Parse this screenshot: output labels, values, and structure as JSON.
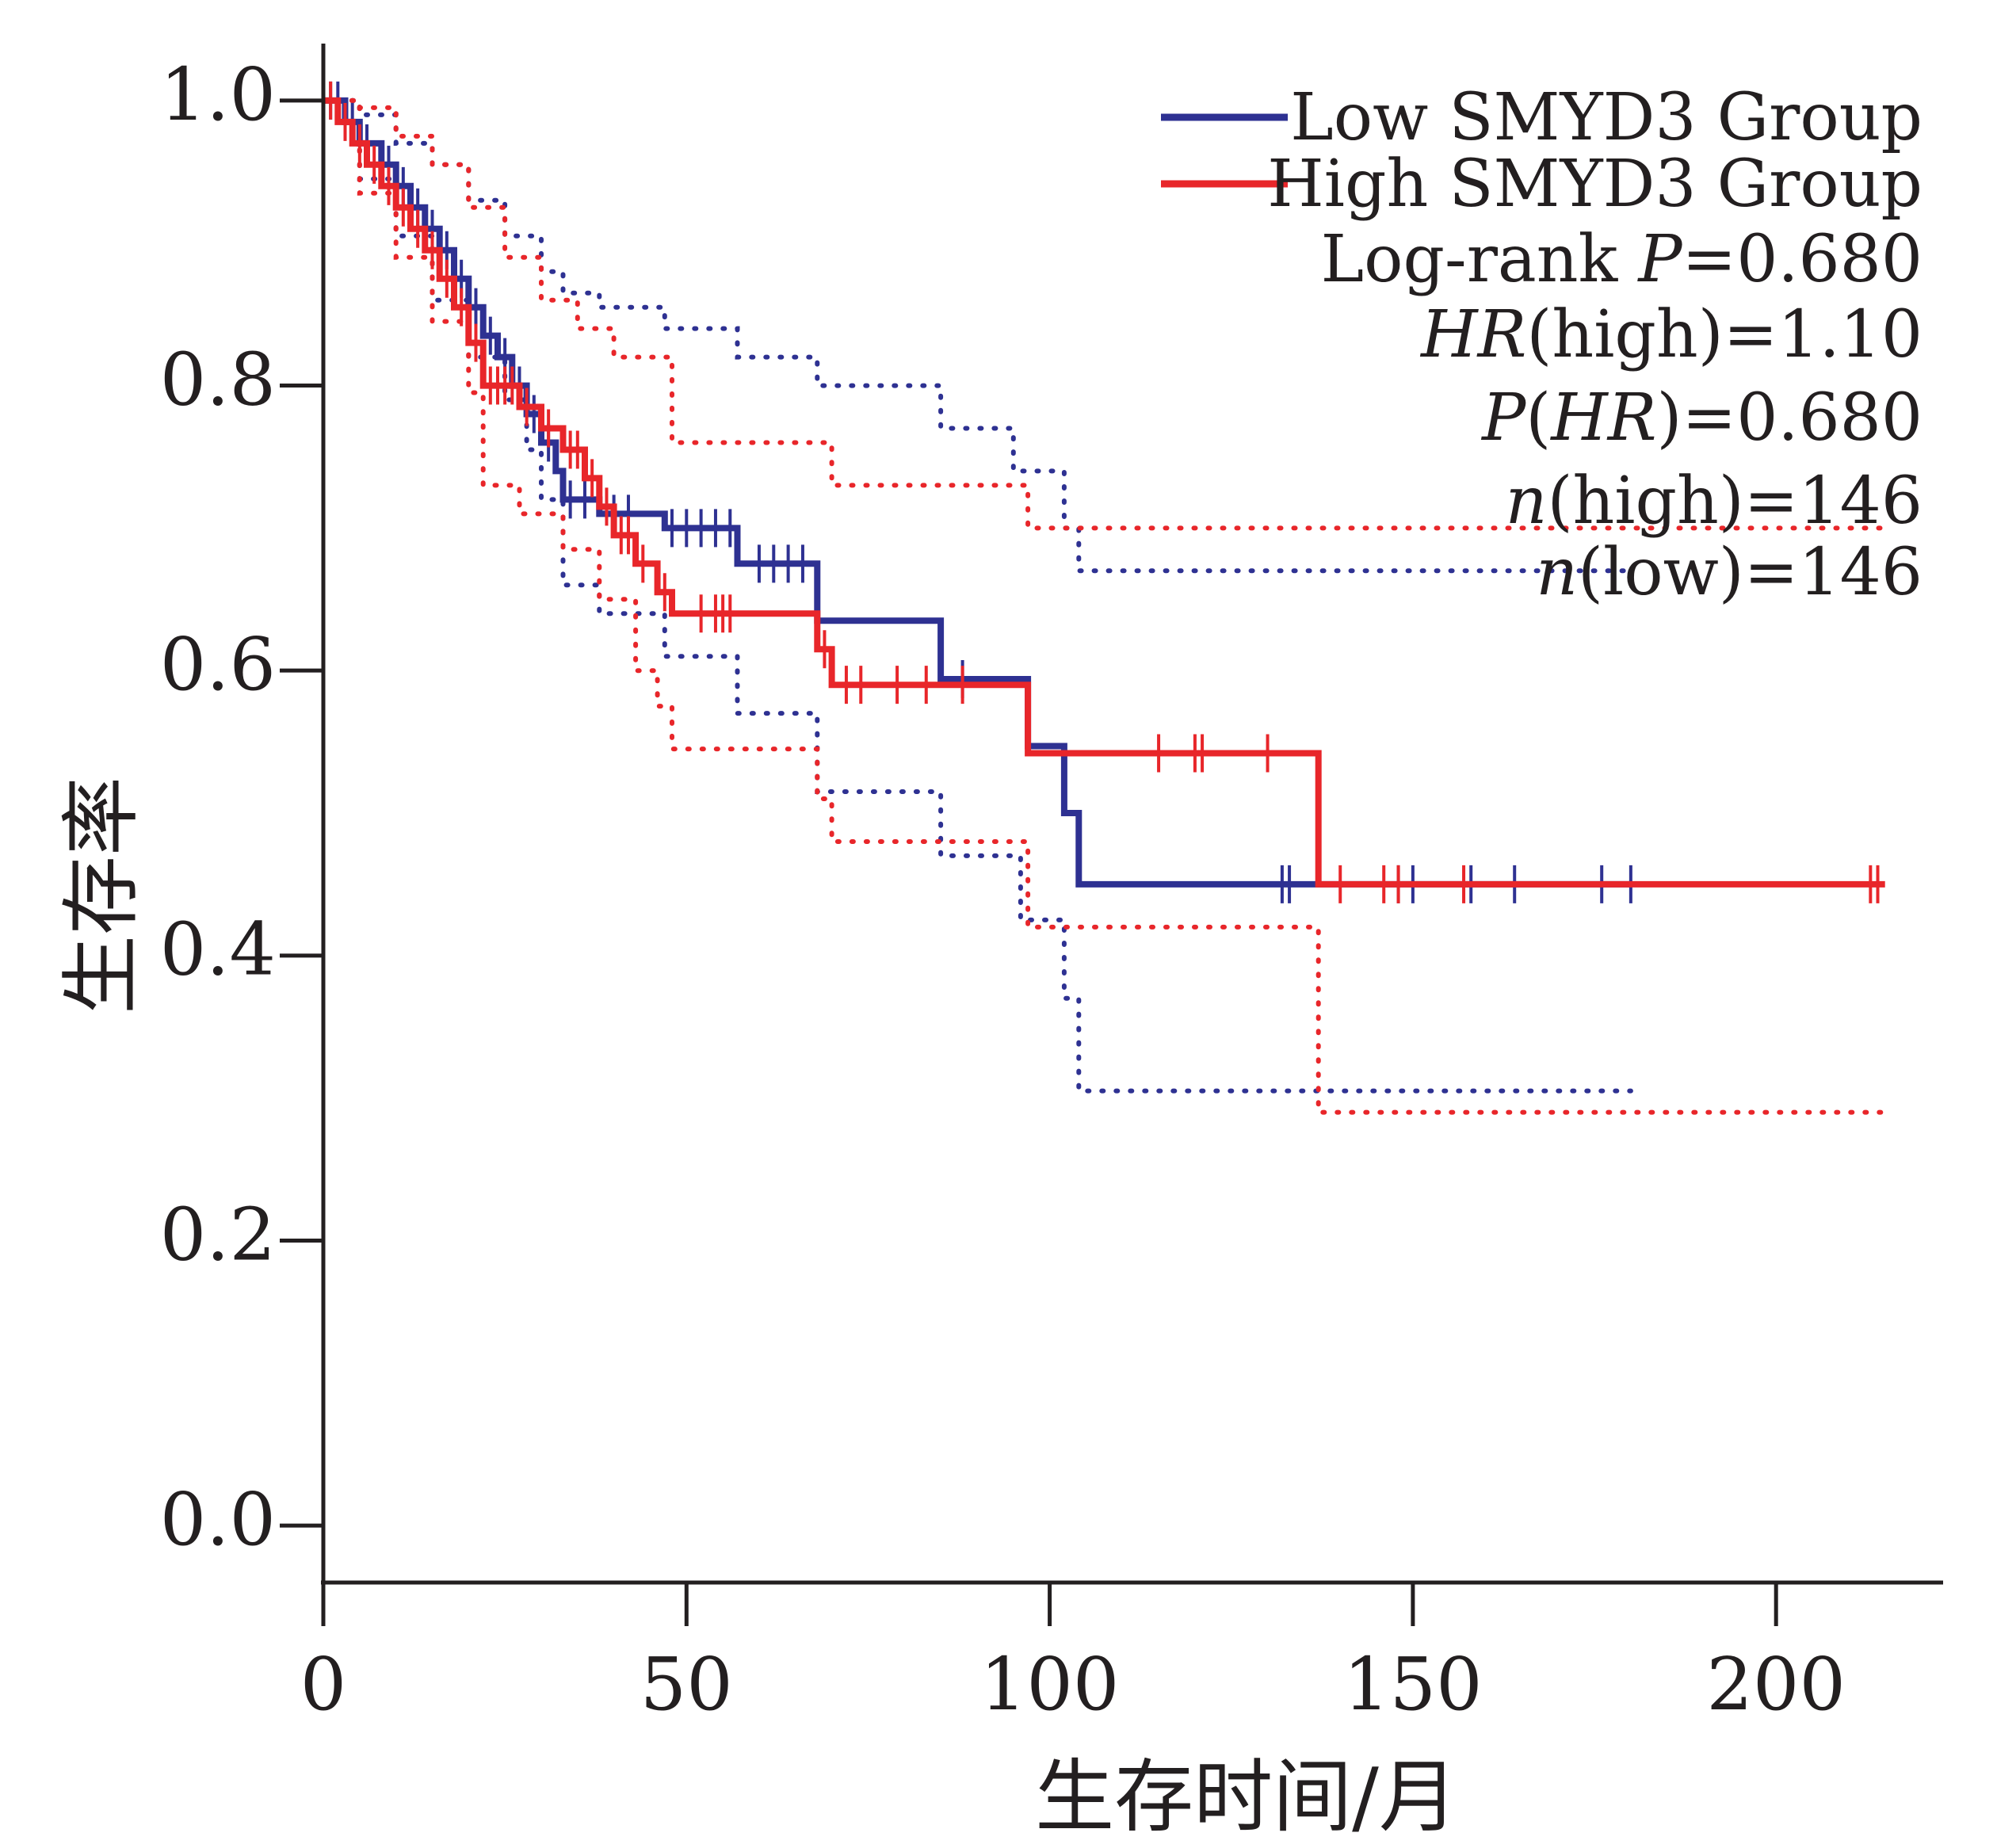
{
  "chart_data": {
    "type": "line",
    "subtype": "kaplan-meier",
    "title": "",
    "xlabel": "生存时间/月",
    "ylabel": "生存率",
    "xlim": [
      0,
      223
    ],
    "ylim": [
      -0.04,
      1.04
    ],
    "xticks": [
      0,
      50,
      100,
      150,
      200
    ],
    "xtick_labels": [
      "0",
      "50",
      "100",
      "150",
      "200"
    ],
    "yticks": [
      0.0,
      0.2,
      0.4,
      0.6,
      0.8,
      1.0
    ],
    "ytick_labels": [
      "0.0",
      "0.2",
      "0.4",
      "0.6",
      "0.8",
      "1.0"
    ],
    "grid": false,
    "legend_position": "top-right",
    "stats": [
      {
        "parts": [
          {
            "t": "Log-rank ",
            "i": false
          },
          {
            "t": "P",
            "i": true
          },
          {
            "t": "=0.680",
            "i": false
          }
        ]
      },
      {
        "parts": [
          {
            "t": "HR",
            "i": true
          },
          {
            "t": "(high)=1.10",
            "i": false
          }
        ]
      },
      {
        "parts": [
          {
            "t": "P",
            "i": true
          },
          {
            "t": "(",
            "i": false
          },
          {
            "t": "HR",
            "i": true
          },
          {
            "t": ")=0.680",
            "i": false
          }
        ]
      },
      {
        "parts": [
          {
            "t": "n",
            "i": true
          },
          {
            "t": "(high)=146",
            "i": false
          }
        ]
      },
      {
        "parts": [
          {
            "t": "n",
            "i": true
          },
          {
            "t": "(low)=146",
            "i": false
          }
        ]
      }
    ],
    "series": [
      {
        "name": "Low SMYD3 Group",
        "color": "#2e3192",
        "steps": [
          [
            0,
            1.0
          ],
          [
            3,
            0.985
          ],
          [
            5,
            0.97
          ],
          [
            8,
            0.955
          ],
          [
            10,
            0.94
          ],
          [
            12,
            0.925
          ],
          [
            14,
            0.91
          ],
          [
            16,
            0.895
          ],
          [
            18,
            0.875
          ],
          [
            20,
            0.855
          ],
          [
            22,
            0.835
          ],
          [
            24,
            0.82
          ],
          [
            26,
            0.8
          ],
          [
            28,
            0.78
          ],
          [
            30,
            0.76
          ],
          [
            32,
            0.74
          ],
          [
            33,
            0.72
          ],
          [
            38,
            0.71
          ],
          [
            47,
            0.7
          ],
          [
            57,
            0.675
          ],
          [
            68,
            0.635
          ],
          [
            85,
            0.594
          ],
          [
            97,
            0.547
          ],
          [
            102,
            0.5
          ],
          [
            104,
            0.45
          ],
          [
            180,
            0.45
          ]
        ],
        "censors": [
          [
            1,
            1.0
          ],
          [
            2,
            1.0
          ],
          [
            4,
            0.985
          ],
          [
            6,
            0.97
          ],
          [
            9,
            0.955
          ],
          [
            11,
            0.94
          ],
          [
            13,
            0.925
          ],
          [
            15,
            0.91
          ],
          [
            17,
            0.895
          ],
          [
            19,
            0.875
          ],
          [
            21,
            0.855
          ],
          [
            23,
            0.835
          ],
          [
            25,
            0.82
          ],
          [
            27,
            0.8
          ],
          [
            29,
            0.78
          ],
          [
            31,
            0.76
          ],
          [
            34,
            0.72
          ],
          [
            36,
            0.72
          ],
          [
            40,
            0.71
          ],
          [
            42,
            0.71
          ],
          [
            48,
            0.7
          ],
          [
            50,
            0.7
          ],
          [
            52,
            0.7
          ],
          [
            54,
            0.7
          ],
          [
            56,
            0.7
          ],
          [
            60,
            0.675
          ],
          [
            62,
            0.675
          ],
          [
            64,
            0.675
          ],
          [
            66,
            0.675
          ],
          [
            88,
            0.594
          ],
          [
            132,
            0.45
          ],
          [
            133,
            0.45
          ],
          [
            148,
            0.45
          ],
          [
            150,
            0.45
          ],
          [
            158,
            0.45
          ],
          [
            164,
            0.45
          ],
          [
            176,
            0.45
          ],
          [
            180,
            0.45
          ]
        ],
        "ci_upper": [
          [
            0,
            1.0
          ],
          [
            5,
            0.99
          ],
          [
            10,
            0.97
          ],
          [
            15,
            0.955
          ],
          [
            20,
            0.93
          ],
          [
            25,
            0.905
          ],
          [
            30,
            0.88
          ],
          [
            33,
            0.865
          ],
          [
            38,
            0.855
          ],
          [
            47,
            0.84
          ],
          [
            57,
            0.82
          ],
          [
            68,
            0.8
          ],
          [
            85,
            0.77
          ],
          [
            95,
            0.74
          ],
          [
            102,
            0.7
          ],
          [
            104,
            0.67
          ],
          [
            180,
            0.67
          ]
        ],
        "ci_lower": [
          [
            0,
            1.0
          ],
          [
            5,
            0.945
          ],
          [
            10,
            0.905
          ],
          [
            15,
            0.86
          ],
          [
            20,
            0.82
          ],
          [
            25,
            0.79
          ],
          [
            28,
            0.755
          ],
          [
            30,
            0.72
          ],
          [
            33,
            0.66
          ],
          [
            38,
            0.64
          ],
          [
            47,
            0.61
          ],
          [
            57,
            0.57
          ],
          [
            68,
            0.515
          ],
          [
            85,
            0.47
          ],
          [
            96,
            0.425
          ],
          [
            102,
            0.37
          ],
          [
            104,
            0.305
          ],
          [
            180,
            0.305
          ]
        ]
      },
      {
        "name": "High SMYD3 Group",
        "color": "#e8262a",
        "steps": [
          [
            0,
            1.0
          ],
          [
            2,
            0.985
          ],
          [
            4,
            0.97
          ],
          [
            6,
            0.955
          ],
          [
            8,
            0.94
          ],
          [
            10,
            0.925
          ],
          [
            12,
            0.91
          ],
          [
            14,
            0.895
          ],
          [
            16,
            0.875
          ],
          [
            18,
            0.855
          ],
          [
            20,
            0.83
          ],
          [
            22,
            0.8
          ],
          [
            27,
            0.785
          ],
          [
            30,
            0.77
          ],
          [
            33,
            0.755
          ],
          [
            36,
            0.735
          ],
          [
            38,
            0.715
          ],
          [
            40,
            0.695
          ],
          [
            43,
            0.675
          ],
          [
            46,
            0.655
          ],
          [
            48,
            0.64
          ],
          [
            68,
            0.615
          ],
          [
            70,
            0.59
          ],
          [
            97,
            0.542
          ],
          [
            137,
            0.45
          ],
          [
            215,
            0.45
          ]
        ],
        "censors": [
          [
            1,
            1.0
          ],
          [
            3,
            0.985
          ],
          [
            5,
            0.97
          ],
          [
            7,
            0.955
          ],
          [
            9,
            0.94
          ],
          [
            11,
            0.925
          ],
          [
            13,
            0.91
          ],
          [
            15,
            0.895
          ],
          [
            17,
            0.875
          ],
          [
            19,
            0.855
          ],
          [
            21,
            0.83
          ],
          [
            23,
            0.8
          ],
          [
            24,
            0.8
          ],
          [
            25,
            0.8
          ],
          [
            26,
            0.8
          ],
          [
            28,
            0.785
          ],
          [
            31,
            0.77
          ],
          [
            34,
            0.755
          ],
          [
            35,
            0.755
          ],
          [
            37,
            0.735
          ],
          [
            39,
            0.715
          ],
          [
            41,
            0.695
          ],
          [
            42,
            0.695
          ],
          [
            44,
            0.675
          ],
          [
            47,
            0.655
          ],
          [
            52,
            0.64
          ],
          [
            54,
            0.64
          ],
          [
            55,
            0.64
          ],
          [
            56,
            0.64
          ],
          [
            69,
            0.615
          ],
          [
            72,
            0.59
          ],
          [
            74,
            0.59
          ],
          [
            79,
            0.59
          ],
          [
            83,
            0.59
          ],
          [
            88,
            0.59
          ],
          [
            115,
            0.542
          ],
          [
            120,
            0.542
          ],
          [
            121,
            0.542
          ],
          [
            130,
            0.542
          ],
          [
            140,
            0.45
          ],
          [
            146,
            0.45
          ],
          [
            148,
            0.45
          ],
          [
            157,
            0.45
          ],
          [
            213,
            0.45
          ],
          [
            214,
            0.45
          ]
        ],
        "ci_upper": [
          [
            0,
            1.0
          ],
          [
            5,
            0.995
          ],
          [
            10,
            0.975
          ],
          [
            15,
            0.955
          ],
          [
            20,
            0.925
          ],
          [
            25,
            0.89
          ],
          [
            30,
            0.86
          ],
          [
            35,
            0.84
          ],
          [
            40,
            0.82
          ],
          [
            48,
            0.76
          ],
          [
            68,
            0.76
          ],
          [
            70,
            0.73
          ],
          [
            97,
            0.7
          ],
          [
            137,
            0.7
          ],
          [
            215,
            0.7
          ]
        ],
        "ci_lower": [
          [
            0,
            1.0
          ],
          [
            5,
            0.935
          ],
          [
            10,
            0.89
          ],
          [
            15,
            0.845
          ],
          [
            20,
            0.795
          ],
          [
            22,
            0.73
          ],
          [
            27,
            0.71
          ],
          [
            33,
            0.685
          ],
          [
            38,
            0.65
          ],
          [
            43,
            0.6
          ],
          [
            46,
            0.575
          ],
          [
            48,
            0.545
          ],
          [
            68,
            0.51
          ],
          [
            70,
            0.48
          ],
          [
            97,
            0.42
          ],
          [
            137,
            0.29
          ],
          [
            215,
            0.29
          ]
        ]
      }
    ]
  }
}
